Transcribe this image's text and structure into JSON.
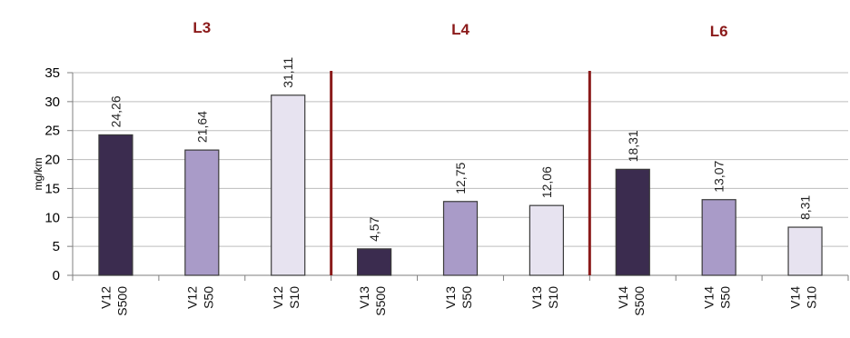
{
  "chart_data": {
    "type": "bar",
    "ylabel": "mg/km",
    "ylim": [
      0,
      35
    ],
    "yticks": [
      0,
      5,
      10,
      15,
      20,
      25,
      30,
      35
    ],
    "grid": true,
    "groups": [
      {
        "title": "L3",
        "bars": [
          {
            "label": [
              "V12",
              "S500"
            ],
            "value": 24.26,
            "value_label": "24,26",
            "style": "dark"
          },
          {
            "label": [
              "V12",
              "S50"
            ],
            "value": 21.64,
            "value_label": "21,64",
            "style": "mid"
          },
          {
            "label": [
              "V12",
              "S10"
            ],
            "value": 31.11,
            "value_label": "31,11",
            "style": "light"
          }
        ]
      },
      {
        "title": "L4",
        "bars": [
          {
            "label": [
              "V13",
              "S500"
            ],
            "value": 4.57,
            "value_label": "4,57",
            "style": "dark"
          },
          {
            "label": [
              "V13",
              "S50"
            ],
            "value": 12.75,
            "value_label": "12,75",
            "style": "mid"
          },
          {
            "label": [
              "V13",
              "S10"
            ],
            "value": 12.06,
            "value_label": "12,06",
            "style": "light"
          }
        ]
      },
      {
        "title": "L6",
        "bars": [
          {
            "label": [
              "V14",
              "S500"
            ],
            "value": 18.31,
            "value_label": "18,31",
            "style": "dark"
          },
          {
            "label": [
              "V14",
              "S50"
            ],
            "value": 13.07,
            "value_label": "13,07",
            "style": "mid"
          },
          {
            "label": [
              "V14",
              "S10"
            ],
            "value": 8.31,
            "value_label": "8,31",
            "style": "light"
          }
        ]
      }
    ]
  },
  "colors": {
    "dark": "#3b2c4f",
    "mid": "#a99bc8",
    "light": "#e7e3f0",
    "separator": "#8b1a1a",
    "group_title": "#8b1a1a"
  }
}
